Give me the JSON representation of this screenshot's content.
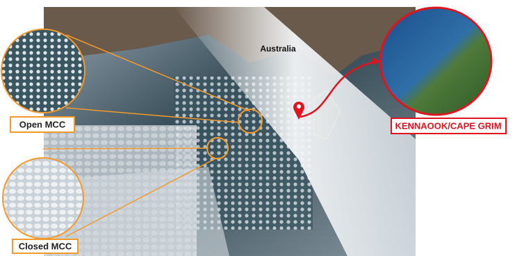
{
  "labels": {
    "australia": "Australia",
    "open_mcc": "Open MCC",
    "closed_mcc": "Closed MCC",
    "site": "KENNAOOK/CAPE GRIM"
  }
}
